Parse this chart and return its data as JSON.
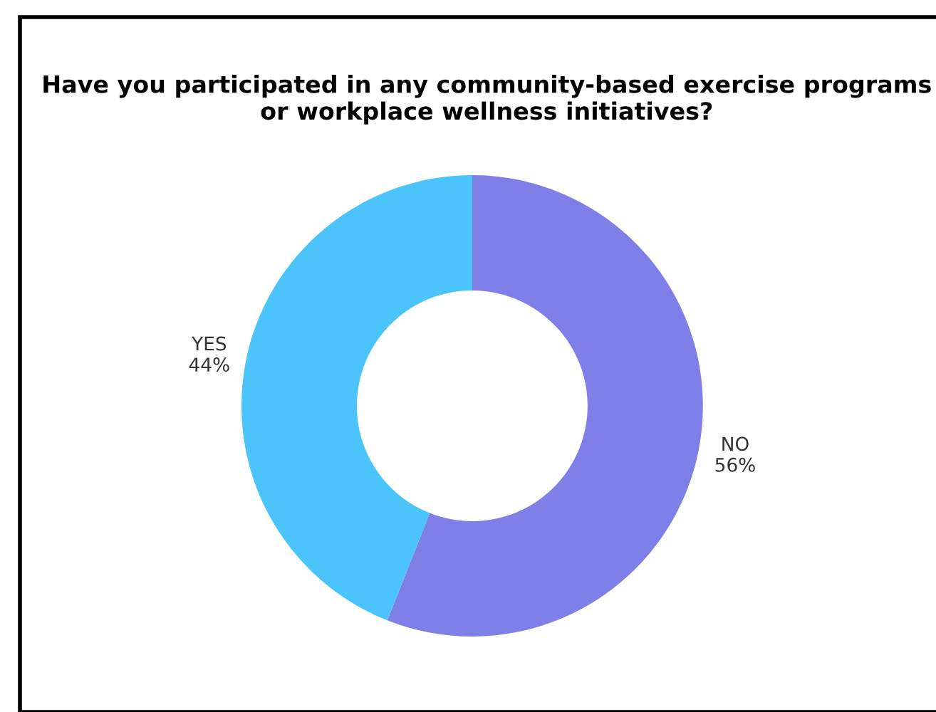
{
  "chart_data": {
    "type": "donut",
    "title": "Have you participated in any community-based exercise programs or workplace wellness initiatives?",
    "categories": [
      "NO",
      "YES"
    ],
    "values": [
      56,
      44
    ],
    "colors": [
      "#7f7fe8",
      "#4bc4fb"
    ],
    "value_labels": [
      "56%",
      "44%"
    ],
    "legend": false
  }
}
